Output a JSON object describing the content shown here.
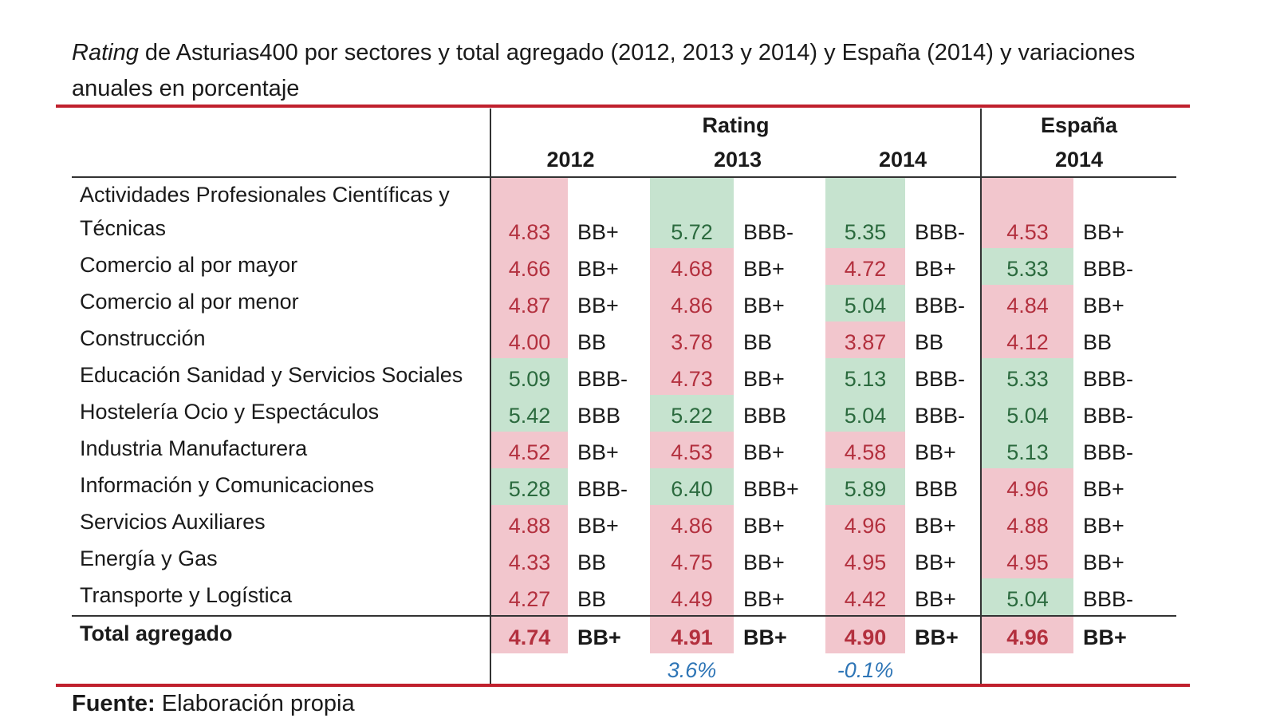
{
  "title": {
    "italic": "Rating",
    "text": " de Asturias400 por sectores y total agregado (2012, 2013 y 2014) y España (2014) y variaciones anuales en porcentaje"
  },
  "header": {
    "groups": [
      "Rating",
      "España"
    ],
    "years": [
      "2012",
      "2013",
      "2014",
      "2014"
    ]
  },
  "rows": [
    {
      "name": "Actividades Profesionales Científicas y Técnicas",
      "cells": [
        {
          "score": "4.83",
          "rating": "BB+",
          "tone": "red"
        },
        {
          "score": "5.72",
          "rating": "BBB-",
          "tone": "green"
        },
        {
          "score": "5.35",
          "rating": "BBB-",
          "tone": "green"
        },
        {
          "score": "4.53",
          "rating": "BB+",
          "tone": "red"
        }
      ]
    },
    {
      "name": "Comercio al por mayor",
      "cells": [
        {
          "score": "4.66",
          "rating": "BB+",
          "tone": "red"
        },
        {
          "score": "4.68",
          "rating": "BB+",
          "tone": "red"
        },
        {
          "score": "4.72",
          "rating": "BB+",
          "tone": "red"
        },
        {
          "score": "5.33",
          "rating": "BBB-",
          "tone": "green"
        }
      ]
    },
    {
      "name": "Comercio al por menor",
      "cells": [
        {
          "score": "4.87",
          "rating": "BB+",
          "tone": "red"
        },
        {
          "score": "4.86",
          "rating": "BB+",
          "tone": "red"
        },
        {
          "score": "5.04",
          "rating": "BBB-",
          "tone": "green"
        },
        {
          "score": "4.84",
          "rating": "BB+",
          "tone": "red"
        }
      ]
    },
    {
      "name": "Construcción",
      "cells": [
        {
          "score": "4.00",
          "rating": "BB",
          "tone": "red"
        },
        {
          "score": "3.78",
          "rating": "BB",
          "tone": "red"
        },
        {
          "score": "3.87",
          "rating": "BB",
          "tone": "red"
        },
        {
          "score": "4.12",
          "rating": "BB",
          "tone": "red"
        }
      ]
    },
    {
      "name": "Educación Sanidad y Servicios Sociales",
      "cells": [
        {
          "score": "5.09",
          "rating": "BBB-",
          "tone": "green"
        },
        {
          "score": "4.73",
          "rating": "BB+",
          "tone": "red"
        },
        {
          "score": "5.13",
          "rating": "BBB-",
          "tone": "green"
        },
        {
          "score": "5.33",
          "rating": "BBB-",
          "tone": "green"
        }
      ]
    },
    {
      "name": "Hostelería Ocio y Espectáculos",
      "cells": [
        {
          "score": "5.42",
          "rating": "BBB",
          "tone": "green"
        },
        {
          "score": "5.22",
          "rating": "BBB",
          "tone": "green"
        },
        {
          "score": "5.04",
          "rating": "BBB-",
          "tone": "green"
        },
        {
          "score": "5.04",
          "rating": "BBB-",
          "tone": "green"
        }
      ]
    },
    {
      "name": "Industria Manufacturera",
      "cells": [
        {
          "score": "4.52",
          "rating": "BB+",
          "tone": "red"
        },
        {
          "score": "4.53",
          "rating": "BB+",
          "tone": "red"
        },
        {
          "score": "4.58",
          "rating": "BB+",
          "tone": "red"
        },
        {
          "score": "5.13",
          "rating": "BBB-",
          "tone": "green"
        }
      ]
    },
    {
      "name": "Información y Comunicaciones",
      "cells": [
        {
          "score": "5.28",
          "rating": "BBB-",
          "tone": "green"
        },
        {
          "score": "6.40",
          "rating": "BBB+",
          "tone": "green"
        },
        {
          "score": "5.89",
          "rating": "BBB",
          "tone": "green"
        },
        {
          "score": "4.96",
          "rating": "BB+",
          "tone": "red"
        }
      ]
    },
    {
      "name": "Servicios Auxiliares",
      "cells": [
        {
          "score": "4.88",
          "rating": "BB+",
          "tone": "red"
        },
        {
          "score": "4.86",
          "rating": "BB+",
          "tone": "red"
        },
        {
          "score": "4.96",
          "rating": "BB+",
          "tone": "red"
        },
        {
          "score": "4.88",
          "rating": "BB+",
          "tone": "red"
        }
      ]
    },
    {
      "name": "Energía y Gas",
      "cells": [
        {
          "score": "4.33",
          "rating": "BB",
          "tone": "red"
        },
        {
          "score": "4.75",
          "rating": "BB+",
          "tone": "red"
        },
        {
          "score": "4.95",
          "rating": "BB+",
          "tone": "red"
        },
        {
          "score": "4.95",
          "rating": "BB+",
          "tone": "red"
        }
      ]
    },
    {
      "name": "Transporte y Logística",
      "cells": [
        {
          "score": "4.27",
          "rating": "BB",
          "tone": "red"
        },
        {
          "score": "4.49",
          "rating": "BB+",
          "tone": "red"
        },
        {
          "score": "4.42",
          "rating": "BB+",
          "tone": "red"
        },
        {
          "score": "5.04",
          "rating": "BBB-",
          "tone": "green"
        }
      ]
    }
  ],
  "total": {
    "name": "Total agregado",
    "cells": [
      {
        "score": "4.74",
        "rating": "BB+",
        "tone": "red"
      },
      {
        "score": "4.91",
        "rating": "BB+",
        "tone": "red"
      },
      {
        "score": "4.90",
        "rating": "BB+",
        "tone": "red"
      },
      {
        "score": "4.96",
        "rating": "BB+",
        "tone": "red"
      }
    ]
  },
  "variations": [
    "3.6%",
    "-0.1%"
  ],
  "source": {
    "label": "Fuente:",
    "text": "Elaboración propia"
  }
}
